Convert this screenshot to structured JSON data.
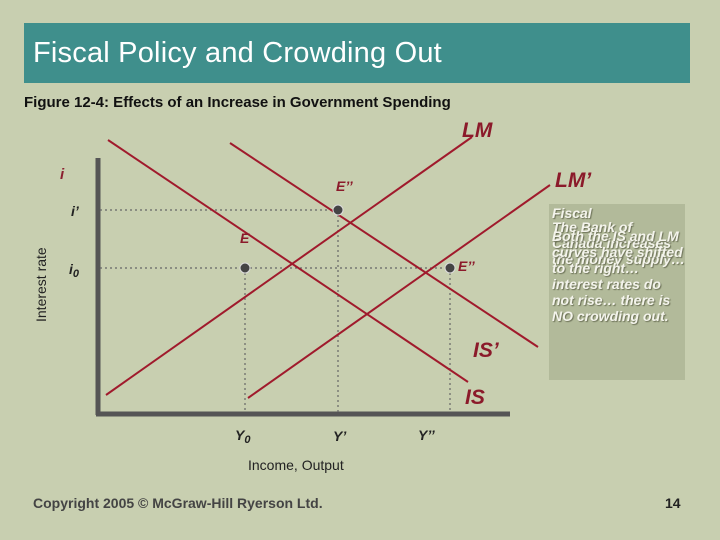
{
  "slide": {
    "title": "Fiscal Policy and Crowding Out",
    "subtitle": "Figure 12-4: Effects of an Increase in Government Spending",
    "copyright": "Copyright 2005 © McGraw-Hill Ryerson Ltd.",
    "page_number": "14"
  },
  "diagram": {
    "y_axis_label": "Interest rate",
    "x_axis_label": "Income, Output",
    "curve_labels": {
      "lm": "LM",
      "lm_prime": "LM’",
      "is": "IS",
      "is_prime": "IS’"
    },
    "rate_labels": {
      "i": "i",
      "i_prime": "i’",
      "i0_main": "i",
      "i0_sub": "0"
    },
    "output_labels": {
      "y0_main": "Y",
      "y0_sub": "0",
      "y_prime": "Y’",
      "y_double_prime": "Y’’"
    },
    "point_labels": {
      "e": "E",
      "e_double_prime_top": "E’’",
      "e_double_prime_right": "E’’"
    }
  },
  "notes": {
    "fiscal": "Fiscal",
    "bank": "The Bank of Canada increases the money supply…",
    "shift": "Both the IS and LM curves have shifted to the right… interest rates do not rise… there is NO crowding out."
  },
  "colors": {
    "background": "#c8cfb0",
    "title_bar": "#3f8f8c",
    "curve": "#a01a2c",
    "axis": "#555555",
    "note_box": "#b2ba9a"
  }
}
